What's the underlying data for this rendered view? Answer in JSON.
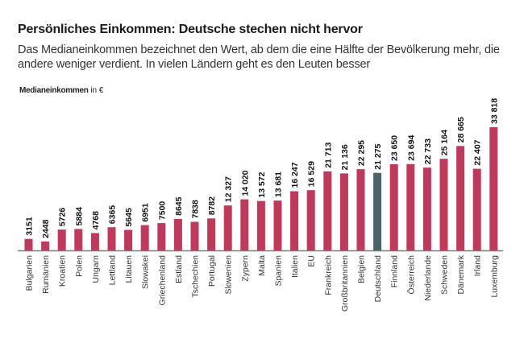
{
  "chart_data": {
    "type": "bar",
    "title": "Persönliches Einkommen: Deutsche stechen nicht hervor",
    "subtitle": "Das Medianeinkommen bezeichnet den Wert, ab dem die eine Hälfte der Bevölkerung mehr, die andere weniger verdient. In vielen Ländern geht es den Leuten besser",
    "ylabel_bold": "Medianeinkommen",
    "ylabel_unit": "in €",
    "xlabel": "",
    "ylim": [
      0,
      33818
    ],
    "grid": false,
    "categories": [
      "Bulgarien",
      "Rumänien",
      "Kroatien",
      "Polen",
      "Ungarn",
      "Lettland",
      "Litauen",
      "Slowakei",
      "Griechenland",
      "Estland",
      "Tschechien",
      "Portugal",
      "Slowenien",
      "Zypern",
      "Malta",
      "Spanien",
      "Italien",
      "EU",
      "Frankreich",
      "Großbritannien",
      "Belgien",
      "Deutschland",
      "Finnland",
      "Österreich",
      "Niederlande",
      "Schweden",
      "Dänemark",
      "Irland",
      "Luxemburg"
    ],
    "values": [
      3151,
      2448,
      5726,
      5884,
      4768,
      6365,
      5645,
      6951,
      7500,
      8645,
      7838,
      8782,
      12327,
      14020,
      13572,
      13681,
      16247,
      16529,
      21713,
      21136,
      22295,
      21275,
      23650,
      23694,
      22733,
      25164,
      28665,
      22407,
      33818
    ],
    "value_labels": [
      "3151",
      "2448",
      "5726",
      "5884",
      "4768",
      "6365",
      "5645",
      "6951",
      "7500",
      "8645",
      "7838",
      "8782",
      "12 327",
      "14 020",
      "13 572",
      "13 681",
      "16 247",
      "16 529",
      "21 713",
      "21 136",
      "22 295",
      "21 275",
      "23 650",
      "23 694",
      "22 733",
      "25 164",
      "28 665",
      "22 407",
      "33 818"
    ],
    "highlight_category": "Deutschland",
    "colors": {
      "bar": "#c0395a",
      "highlight": "#4b6468",
      "axis": "#7a7a7a"
    }
  }
}
